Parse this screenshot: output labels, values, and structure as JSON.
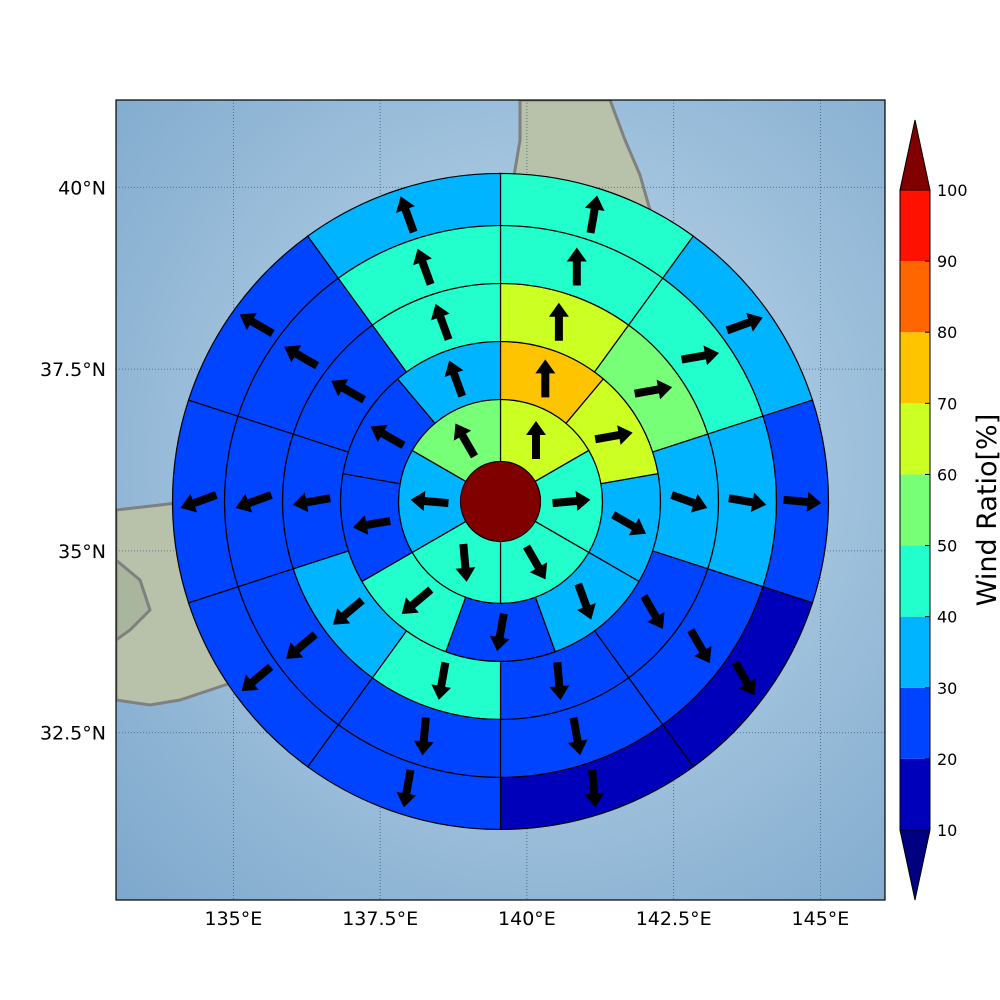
{
  "map": {
    "lon_range": [
      133.0,
      146.1
    ],
    "lat_range": [
      30.2,
      41.2
    ],
    "lon_ticks": [
      135,
      137.5,
      140,
      142.5,
      145
    ],
    "lat_ticks": [
      32.5,
      35,
      37.5,
      40
    ],
    "lon_tick_labels": [
      "135°E",
      "137.5°E",
      "140°E",
      "142.5°E",
      "145°E"
    ],
    "lat_tick_labels": [
      "32.5°N",
      "35°N",
      "37.5°N",
      "40°N"
    ],
    "center": {
      "lon": 139.55,
      "lat": 35.68
    },
    "center_color": "#800000",
    "coastline_color": "#808080",
    "sea_color": "#8db3d3",
    "land_color": "#b9c3ad"
  },
  "colorbar": {
    "title": "Wind Ratio[%]",
    "tick_labels": [
      "10",
      "20",
      "30",
      "40",
      "50",
      "60",
      "70",
      "80",
      "90",
      "100"
    ],
    "colors": [
      "#0000bb",
      "#0044ff",
      "#00b4ff",
      "#22ffcc",
      "#77ff77",
      "#ccff22",
      "#ffc400",
      "#ff6600",
      "#ff1100"
    ],
    "under_color": "#000080",
    "over_color": "#800000"
  },
  "chart_data": {
    "type": "polar_sector_wind_ratio",
    "ring_count": 5,
    "sector_count": 12,
    "sector_order": "clockwise from north",
    "wind_ratio_percent": [
      [
        65,
        40,
        40,
        20,
        40,
        30,
        50,
        50
      ],
      [
        65,
        70,
        60,
        50,
        30,
        30,
        50,
        40
      ],
      [
        60,
        65,
        50,
        40,
        20,
        20,
        60,
        30
      ],
      [
        40,
        40,
        25,
        20,
        20,
        20,
        40,
        40
      ],
      [
        40,
        35,
        35,
        20,
        20,
        20,
        30,
        45
      ],
      [
        10,
        30,
        20,
        20,
        20,
        10,
        30,
        30
      ],
      [
        40,
        40,
        40,
        40,
        20,
        30,
        40,
        40
      ],
      [
        40,
        40,
        20,
        20,
        20,
        10,
        20,
        20
      ],
      [
        30,
        30,
        20,
        20,
        20,
        20,
        20,
        20
      ],
      [
        20,
        20,
        20,
        20,
        20,
        10,
        20,
        10
      ],
      [
        40,
        40,
        20,
        20,
        20,
        10,
        20,
        10
      ],
      [
        40,
        45,
        40,
        30,
        30,
        20,
        40,
        20
      ]
    ],
    "wind_ratio_by_ring": [
      [
        65,
        40,
        40,
        40,
        40,
        30,
        40,
        30,
        30,
        30,
        50,
        50
      ],
      [
        70,
        60,
        30,
        30,
        30,
        20,
        40,
        30,
        20,
        20,
        30,
        55
      ],
      [
        60,
        50,
        30,
        20,
        20,
        20,
        40,
        30,
        20,
        20,
        45,
        55
      ],
      [
        40,
        40,
        30,
        20,
        20,
        20,
        20,
        20,
        20,
        20,
        40,
        50
      ],
      [
        40,
        35,
        20,
        10,
        10,
        10,
        20,
        20,
        20,
        20,
        30,
        45
      ]
    ],
    "wind_direction_deg": [
      [
        0,
        85,
        150,
        175,
        275,
        330
      ],
      [
        0,
        80,
        120,
        160,
        190,
        230,
        260,
        300,
        340
      ],
      [
        0,
        80,
        110,
        150,
        175,
        190,
        230,
        260,
        300,
        340
      ],
      [
        0,
        80,
        100,
        150,
        170,
        185,
        230,
        250,
        300,
        340
      ],
      [
        10,
        70,
        95,
        150,
        175,
        190,
        230,
        250,
        300,
        340
      ]
    ]
  }
}
